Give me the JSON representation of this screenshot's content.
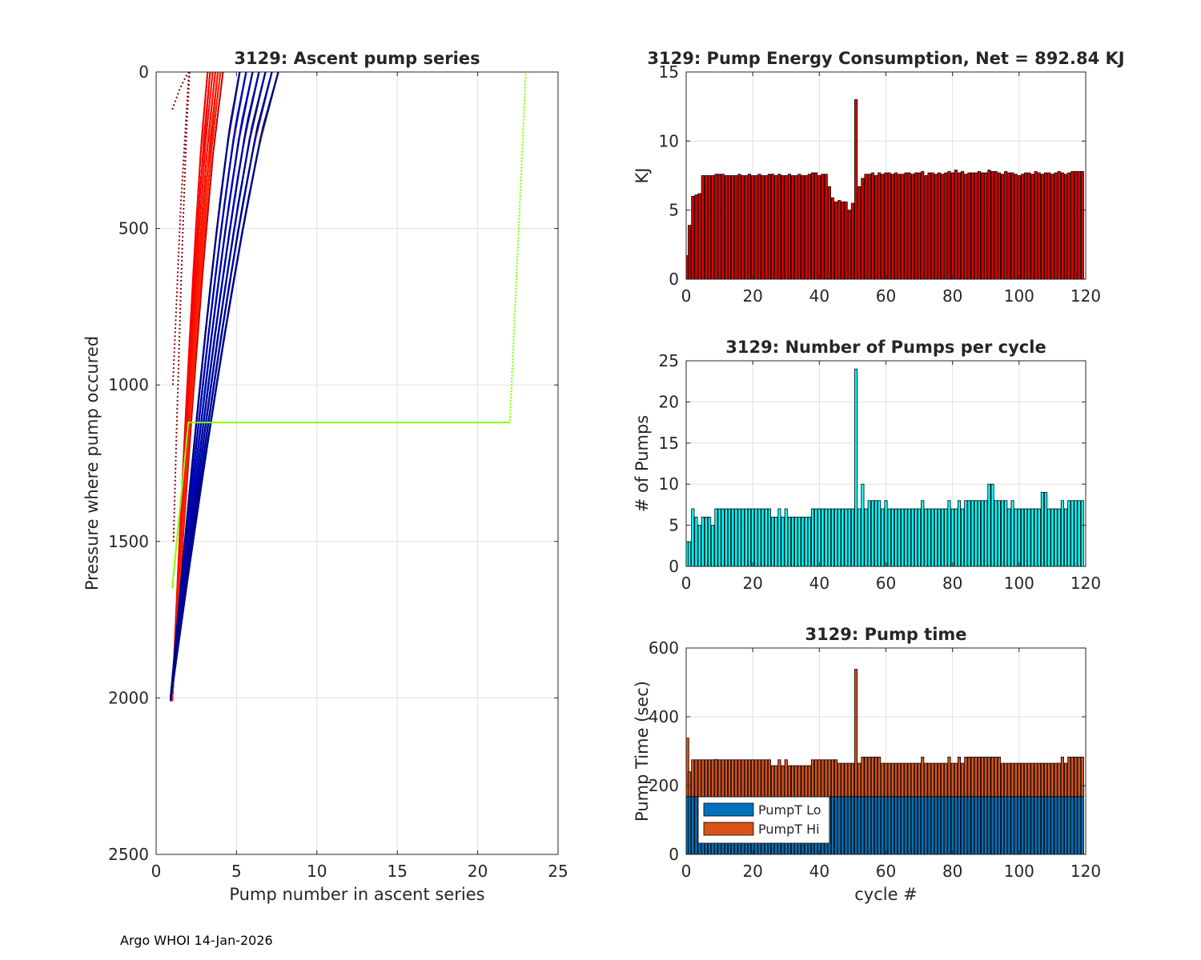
{
  "footer": "Argo WHOI 14-Jan-2026",
  "chart_data": [
    {
      "id": "ascent",
      "type": "line",
      "title": "3129: Ascent pump series",
      "xlabel": "Pump number in ascent series",
      "ylabel": "Pressure where pump occured",
      "xlim": [
        0,
        25
      ],
      "ylim": [
        0,
        2500
      ],
      "y_reversed": true,
      "grid": true,
      "xticks": [
        0,
        5,
        10,
        15,
        20,
        25
      ],
      "yticks": [
        0,
        500,
        1000,
        1500,
        2000,
        2500
      ],
      "colormap": "jet (early cycles dark red, late cycles dark blue)",
      "series_count": 120,
      "outlier_series": {
        "name": "cycle with 24 pumps",
        "color": "#80ff00",
        "x": [
          1,
          2,
          22,
          23
        ],
        "y": [
          1650,
          1120,
          1120,
          0
        ]
      }
    },
    {
      "id": "energy",
      "type": "bar",
      "title": "3129: Pump Energy Consumption,  Net = 892.84 KJ",
      "xlabel": "",
      "ylabel": "KJ",
      "xlim": [
        0,
        120
      ],
      "ylim": [
        0,
        15
      ],
      "xticks": [
        0,
        20,
        40,
        60,
        80,
        100,
        120
      ],
      "yticks": [
        0,
        5,
        10,
        15
      ],
      "grid": true,
      "color": "#e00000",
      "x_start": 0,
      "values": [
        1.7,
        3.9,
        6.0,
        6.1,
        6.2,
        7.5,
        7.5,
        7.5,
        7.5,
        7.6,
        7.6,
        7.6,
        7.5,
        7.5,
        7.5,
        7.5,
        7.6,
        7.5,
        7.5,
        7.6,
        7.5,
        7.5,
        7.6,
        7.5,
        7.5,
        7.6,
        7.6,
        7.5,
        7.6,
        7.5,
        7.5,
        7.6,
        7.5,
        7.5,
        7.6,
        7.5,
        7.5,
        7.6,
        7.7,
        7.7,
        7.5,
        7.6,
        7.6,
        6.7,
        5.9,
        5.6,
        5.7,
        5.6,
        5.6,
        5.0,
        5.5,
        13.0,
        6.7,
        7.3,
        7.6,
        7.6,
        7.7,
        7.5,
        7.7,
        7.6,
        7.7,
        7.7,
        7.6,
        7.7,
        7.6,
        7.6,
        7.7,
        7.7,
        7.6,
        7.7,
        7.7,
        7.8,
        7.5,
        7.7,
        7.7,
        7.6,
        7.7,
        7.6,
        7.7,
        7.8,
        7.7,
        7.9,
        7.7,
        7.8,
        7.6,
        7.7,
        7.7,
        7.7,
        7.8,
        7.7,
        7.7,
        7.9,
        7.8,
        7.8,
        7.7,
        7.6,
        7.8,
        7.7,
        7.7,
        7.6,
        7.5,
        7.6,
        7.7,
        7.7,
        7.6,
        7.8,
        7.7,
        7.6,
        7.7,
        7.7,
        7.6,
        7.7,
        7.8,
        7.7,
        7.6,
        7.7,
        7.8,
        7.8,
        7.8,
        7.8
      ]
    },
    {
      "id": "pumps",
      "type": "bar",
      "title": "3129: Number of Pumps per cycle",
      "xlabel": "",
      "ylabel": "# of Pumps",
      "xlim": [
        0,
        120
      ],
      "ylim": [
        0,
        25
      ],
      "xticks": [
        0,
        20,
        40,
        60,
        80,
        100,
        120
      ],
      "yticks": [
        0,
        5,
        10,
        15,
        20,
        25
      ],
      "grid": true,
      "color": "#00ffff",
      "x_start": 0,
      "values": [
        3,
        3,
        7,
        6,
        5,
        6,
        6,
        6,
        5,
        7,
        7,
        7,
        7,
        7,
        7,
        7,
        7,
        7,
        7,
        7,
        7,
        7,
        7,
        7,
        7,
        7,
        6,
        6,
        7,
        6,
        7,
        6,
        6,
        6,
        6,
        6,
        6,
        6,
        7,
        7,
        7,
        7,
        7,
        7,
        7,
        7,
        7,
        7,
        7,
        7,
        7,
        24,
        7,
        10,
        7,
        8,
        8,
        8,
        8,
        7,
        8,
        7,
        7,
        7,
        7,
        7,
        7,
        7,
        7,
        7,
        7,
        8,
        7,
        7,
        7,
        7,
        7,
        7,
        7,
        8,
        7,
        7,
        8,
        7,
        8,
        8,
        8,
        8,
        8,
        8,
        8,
        10,
        10,
        8,
        8,
        8,
        8,
        7,
        8,
        7,
        7,
        7,
        7,
        7,
        7,
        7,
        7,
        9,
        9,
        7,
        7,
        7,
        7,
        8,
        7,
        8,
        8,
        8,
        8,
        8
      ]
    },
    {
      "id": "pumptime",
      "type": "bar",
      "stacked": true,
      "title": "3129: Pump time",
      "xlabel": "cycle #",
      "ylabel": "Pump Time (sec)",
      "xlim": [
        0,
        120
      ],
      "ylim": [
        0,
        600
      ],
      "xticks": [
        0,
        20,
        40,
        60,
        80,
        100,
        120
      ],
      "yticks": [
        0,
        200,
        400,
        600
      ],
      "grid": true,
      "legend_position": "bottom-left",
      "series": [
        {
          "name": "PumpT Lo",
          "color": "#0072bd",
          "values": [
            168,
            168,
            168,
            168,
            168,
            168,
            168,
            168,
            168,
            168,
            168,
            168,
            168,
            168,
            168,
            168,
            168,
            168,
            168,
            168,
            168,
            168,
            168,
            168,
            168,
            168,
            168,
            168,
            168,
            168,
            168,
            168,
            168,
            168,
            168,
            168,
            168,
            168,
            168,
            168,
            168,
            168,
            168,
            168,
            168,
            168,
            168,
            168,
            168,
            168,
            168,
            168,
            168,
            168,
            168,
            168,
            168,
            168,
            168,
            168,
            168,
            168,
            168,
            168,
            168,
            168,
            168,
            168,
            168,
            168,
            168,
            168,
            168,
            168,
            168,
            168,
            168,
            168,
            168,
            168,
            168,
            168,
            168,
            168,
            168,
            168,
            168,
            168,
            168,
            168,
            168,
            168,
            168,
            168,
            168,
            168,
            168,
            168,
            168,
            168,
            168,
            168,
            168,
            168,
            168,
            168,
            168,
            168,
            168,
            168,
            168,
            168,
            168,
            168,
            168,
            168,
            168,
            168,
            168,
            168
          ]
        },
        {
          "name": "PumpT Hi",
          "color": "#d95319",
          "values": [
            170,
            72,
            107,
            107,
            107,
            107,
            107,
            107,
            107,
            108,
            107,
            107,
            107,
            107,
            107,
            107,
            107,
            107,
            107,
            107,
            107,
            107,
            107,
            107,
            107,
            107,
            90,
            90,
            107,
            90,
            107,
            90,
            90,
            90,
            90,
            90,
            90,
            90,
            107,
            107,
            107,
            107,
            107,
            107,
            107,
            107,
            97,
            97,
            97,
            97,
            97,
            370,
            97,
            115,
            115,
            115,
            115,
            115,
            115,
            97,
            97,
            97,
            97,
            97,
            97,
            97,
            97,
            97,
            97,
            97,
            97,
            115,
            97,
            97,
            97,
            97,
            97,
            97,
            97,
            115,
            97,
            97,
            115,
            97,
            115,
            115,
            115,
            115,
            115,
            115,
            115,
            115,
            115,
            115,
            115,
            97,
            97,
            97,
            97,
            97,
            97,
            97,
            97,
            97,
            97,
            97,
            97,
            97,
            97,
            97,
            97,
            97,
            97,
            115,
            97,
            115,
            115,
            115,
            115,
            115
          ]
        }
      ]
    }
  ]
}
